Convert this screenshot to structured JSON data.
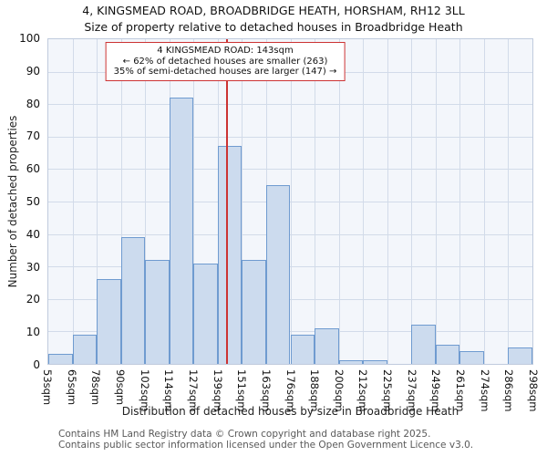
{
  "title": {
    "line1": "4, KINGSMEAD ROAD, BROADBRIDGE HEATH, HORSHAM, RH12 3LL",
    "line2": "Size of property relative to detached houses in Broadbridge Heath"
  },
  "annotation": {
    "line1": "4 KINGSMEAD ROAD: 143sqm",
    "line2": "← 62% of detached houses are smaller (263)",
    "line3": "35% of semi-detached houses are larger (147) →"
  },
  "footer": {
    "line1": "Contains HM Land Registry data © Crown copyright and database right 2025.",
    "line2": "Contains public sector information licensed under the Open Government Licence v3.0."
  },
  "chart_data": {
    "type": "bar",
    "title": "4, KINGSMEAD ROAD, BROADBRIDGE HEATH, HORSHAM, RH12 3LL — Size of property relative to detached houses in Broadbridge Heath",
    "xlabel": "Distribution of detached houses by size in Broadbridge Heath",
    "ylabel": "Number of detached properties",
    "ylim": [
      0,
      100
    ],
    "y_ticks": [
      0,
      10,
      20,
      30,
      40,
      50,
      60,
      70,
      80,
      90,
      100
    ],
    "grid": true,
    "bin_edges_sqm": [
      53,
      65,
      78,
      90,
      102,
      114,
      127,
      139,
      151,
      163,
      176,
      188,
      200,
      212,
      225,
      237,
      249,
      261,
      274,
      286,
      298
    ],
    "tick_labels": [
      "53sqm",
      "65sqm",
      "78sqm",
      "90sqm",
      "102sqm",
      "114sqm",
      "127sqm",
      "139sqm",
      "151sqm",
      "163sqm",
      "176sqm",
      "188sqm",
      "200sqm",
      "212sqm",
      "225sqm",
      "237sqm",
      "249sqm",
      "261sqm",
      "274sqm",
      "286sqm",
      "298sqm"
    ],
    "values": [
      3,
      9,
      26,
      39,
      32,
      82,
      31,
      67,
      32,
      55,
      9,
      11,
      1,
      1,
      0,
      12,
      6,
      4,
      0,
      5
    ],
    "marker": {
      "value_sqm": 143,
      "label": "4 KINGSMEAD ROAD: 143sqm"
    },
    "colors": {
      "bar_fill": "#ccdbee",
      "bar_stroke": "#6f9bd0",
      "marker_line": "#cc3333",
      "grid": "#d2dbe9",
      "plot_bg": "#f3f6fb",
      "frame": "#c0cbdd"
    }
  }
}
